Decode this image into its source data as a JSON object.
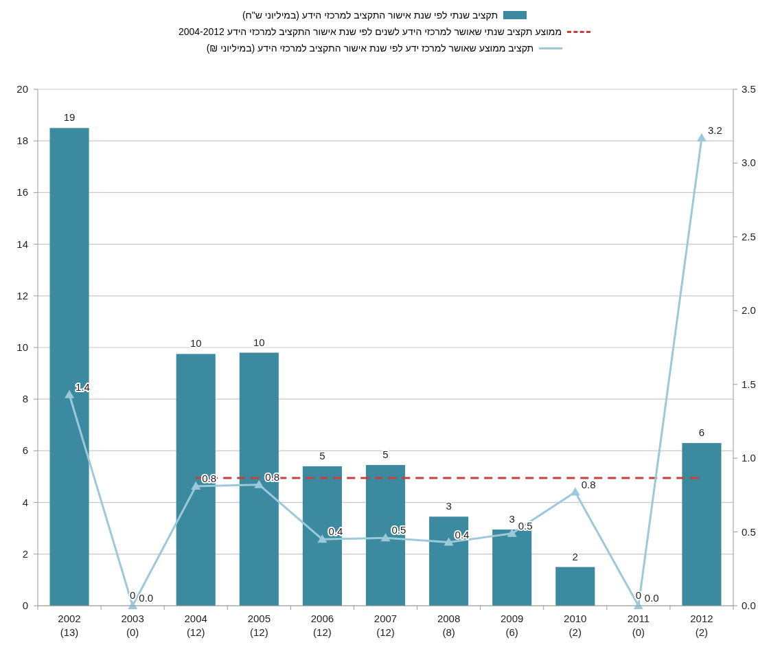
{
  "chart_data": {
    "type": "bar",
    "categories": [
      "2002\n(13)",
      "2003\n(0)",
      "2004\n(12)",
      "2005\n(12)",
      "2006\n(12)",
      "2007\n(12)",
      "2008\n(8)",
      "2009\n(6)",
      "2010\n(2)",
      "2011\n(0)",
      "2012\n(2)"
    ],
    "ylim": [
      0,
      20
    ],
    "yticks": [
      0,
      2,
      4,
      6,
      8,
      10,
      12,
      14,
      16,
      18,
      20
    ],
    "y2lim": [
      0,
      3.5
    ],
    "y2ticks": [
      {
        "value": 0,
        "label": "0.0"
      },
      {
        "value": 0.5,
        "label": "0.5"
      },
      {
        "value": 1,
        "label": "1.0"
      },
      {
        "value": 1.5,
        "label": "1.5"
      },
      {
        "value": 2,
        "label": "2.0"
      },
      {
        "value": 2.5,
        "label": "2.5"
      },
      {
        "value": 3,
        "label": "3.0"
      },
      {
        "value": 3.5,
        "label": "3.5"
      }
    ],
    "grid": "y",
    "legend": "top",
    "series": [
      {
        "name": "תקציב שנתי לפי שנת אישור התקציב למרכזי הידע (במיליוני ש\"ח)",
        "color": "#3c8aa0",
        "values": [
          18.5,
          0,
          9.75,
          9.8,
          5.4,
          5.45,
          3.45,
          2.95,
          1.5,
          0,
          6.3
        ],
        "value_labels": [
          "19",
          "0",
          "10",
          "10",
          "5",
          "5",
          "3",
          "3",
          "2",
          "0",
          "6"
        ]
      },
      {
        "type": "line",
        "name": "ממוצע תקציב שנתי שאושר למרכזי הידע לשנים לפי שנת אישור התקציב למרכזי הידע 2004-2012",
        "color": "#c8403a",
        "line_style": "dashed",
        "marker": "none",
        "values": [
          null,
          null,
          4.95,
          4.95,
          4.95,
          4.95,
          4.95,
          4.95,
          4.95,
          4.95,
          4.95
        ]
      },
      {
        "type": "line",
        "axis": "y2",
        "name": "תקציב ממוצע שאושר למרכז ידע לפי שנת אישור התקציב למרכזי הידע (במיליוני ₪)",
        "color": "#9cc9d9",
        "line_style": "solid",
        "marker": "triangle",
        "values": [
          1.43,
          0,
          0.81,
          0.82,
          0.45,
          0.46,
          0.43,
          0.49,
          0.77,
          0,
          3.17
        ],
        "value_labels": [
          "1.4",
          "0.0",
          "0.8",
          "0.8",
          "0.4",
          "0.5",
          "0.4",
          "0.5",
          "0.8",
          "0.0",
          "3.2"
        ]
      }
    ]
  }
}
